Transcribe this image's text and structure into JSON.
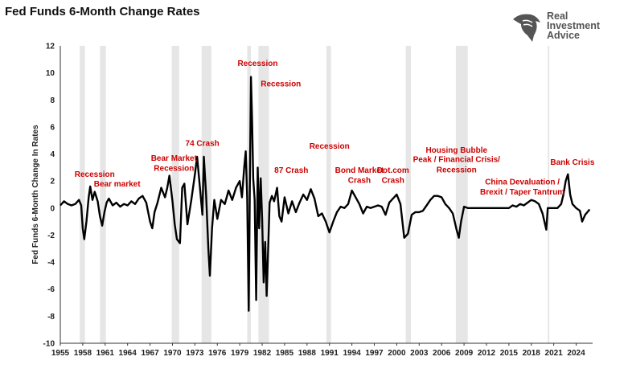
{
  "header": {
    "title": "Fed Funds 6-Month Change Rates"
  },
  "logo": {
    "name": "real-investment-advice-logo",
    "lines": [
      "Real",
      "Investment",
      "Advice"
    ],
    "color": "#555555"
  },
  "chart_data": {
    "type": "line",
    "title": "Fed Funds 6-Month Change Rates",
    "xlabel": "",
    "ylabel": "Fed Funds 6-Month Change In Rates",
    "xlim": [
      1955,
      2026.2
    ],
    "ylim": [
      -10,
      12
    ],
    "grid": false,
    "line_color": "#000000",
    "shade_color": "#e6e6e6",
    "x_ticks": [
      1955,
      1958,
      1961,
      1964,
      1967,
      1970,
      1973,
      1976,
      1979,
      1982,
      1985,
      1988,
      1991,
      1994,
      1997,
      2000,
      2003,
      2006,
      2009,
      2012,
      2015,
      2018,
      2021,
      2024
    ],
    "y_ticks": [
      -10,
      -8,
      -6,
      -4,
      -2,
      0,
      2,
      4,
      6,
      8,
      10,
      12
    ],
    "recession_bands": [
      [
        1957.6,
        1958.3
      ],
      [
        1960.3,
        1961.1
      ],
      [
        1969.9,
        1970.9
      ],
      [
        1973.9,
        1975.2
      ],
      [
        1980.0,
        1980.5
      ],
      [
        1981.5,
        1982.9
      ],
      [
        1990.6,
        1991.2
      ],
      [
        2001.2,
        2001.9
      ],
      [
        2007.9,
        2009.5
      ],
      [
        2020.2,
        2020.4
      ]
    ],
    "series": [
      {
        "x": [
          1955,
          1955.5,
          1956,
          1956.5,
          1957,
          1957.5,
          1957.8,
          1958.0,
          1958.2,
          1958.5,
          1958.8,
          1959,
          1959.3,
          1959.6,
          1960,
          1960.3,
          1960.6,
          1960.9,
          1961.2,
          1961.5,
          1962,
          1962.5,
          1963,
          1963.5,
          1964,
          1964.5,
          1965,
          1965.5,
          1966,
          1966.5,
          1967,
          1967.3,
          1967.6,
          1968,
          1968.5,
          1969,
          1969.3,
          1969.6,
          1970,
          1970.3,
          1970.6,
          1971,
          1971.3,
          1971.6,
          1972,
          1972.5,
          1973,
          1973.3,
          1973.6,
          1974,
          1974.2,
          1974.5,
          1974.8,
          1975,
          1975.3,
          1975.6,
          1976,
          1976.5,
          1977,
          1977.5,
          1978,
          1978.5,
          1979,
          1979.3,
          1979.6,
          1979.8,
          1980,
          1980.2,
          1980.35,
          1980.5,
          1980.65,
          1980.8,
          1981,
          1981.2,
          1981.4,
          1981.6,
          1981.8,
          1982,
          1982.2,
          1982.4,
          1982.6,
          1982.8,
          1983,
          1983.3,
          1983.6,
          1984,
          1984.3,
          1984.6,
          1985,
          1985.5,
          1986,
          1986.5,
          1987,
          1987.5,
          1988,
          1988.5,
          1989,
          1989.5,
          1990,
          1990.5,
          1991,
          1991.5,
          1992,
          1992.5,
          1993,
          1993.5,
          1994,
          1994.5,
          1995,
          1995.5,
          1996,
          1996.5,
          1997,
          1997.5,
          1998,
          1998.5,
          1999,
          1999.5,
          2000,
          2000.5,
          2001,
          2001.5,
          2002,
          2002.5,
          2003,
          2003.5,
          2004,
          2004.5,
          2005,
          2005.5,
          2006,
          2006.5,
          2007,
          2007.5,
          2008,
          2008.3,
          2008.6,
          2009,
          2009.5,
          2010,
          2011,
          2012,
          2013,
          2014,
          2015,
          2015.5,
          2016,
          2016.5,
          2017,
          2017.5,
          2018,
          2018.5,
          2019,
          2019.5,
          2020,
          2020.2,
          2020.5,
          2021,
          2021.5,
          2022,
          2022.3,
          2022.6,
          2022.9,
          2023.2,
          2023.5,
          2024,
          2024.5,
          2024.8,
          2025.2,
          2025.5,
          2025.8
        ],
        "values": [
          0.2,
          0.5,
          0.3,
          0.2,
          0.3,
          0.6,
          0.2,
          -1.5,
          -2.3,
          -1.0,
          0.8,
          1.6,
          0.6,
          1.2,
          0.5,
          -0.6,
          -1.3,
          -0.3,
          0.4,
          0.7,
          0.2,
          0.4,
          0.1,
          0.3,
          0.2,
          0.5,
          0.3,
          0.7,
          0.9,
          0.4,
          -1.0,
          -1.5,
          -0.3,
          0.4,
          1.5,
          0.8,
          1.5,
          2.4,
          0.5,
          -1.2,
          -2.3,
          -2.6,
          1.5,
          1.8,
          -1.2,
          0.5,
          2.5,
          3.8,
          2.0,
          -0.5,
          3.8,
          1.0,
          -3.0,
          -5.0,
          -1.5,
          0.6,
          -0.8,
          0.6,
          0.3,
          1.3,
          0.6,
          1.5,
          2.0,
          0.8,
          3.0,
          4.2,
          0.8,
          -7.6,
          1.5,
          9.7,
          6.5,
          2.2,
          0.6,
          -6.8,
          3.0,
          -1.5,
          2.2,
          -0.8,
          -5.5,
          -2.5,
          -6.5,
          -3.0,
          0.4,
          0.9,
          0.5,
          1.5,
          -0.6,
          -1.0,
          0.8,
          -0.4,
          0.5,
          -0.3,
          0.4,
          1.0,
          0.6,
          1.4,
          0.7,
          -0.6,
          -0.4,
          -1.0,
          -1.8,
          -1.0,
          -0.3,
          0.1,
          0.0,
          0.3,
          1.3,
          0.8,
          0.3,
          -0.4,
          0.1,
          0.0,
          0.1,
          0.2,
          0.1,
          -0.5,
          0.4,
          0.7,
          1.0,
          0.3,
          -2.2,
          -1.9,
          -0.5,
          -0.3,
          -0.3,
          -0.2,
          0.2,
          0.6,
          0.9,
          0.9,
          0.8,
          0.3,
          0.0,
          -0.4,
          -1.6,
          -2.2,
          -1.0,
          0.1,
          0.0,
          0.0,
          0.0,
          0.0,
          0.0,
          0.0,
          0.0,
          0.2,
          0.1,
          0.3,
          0.2,
          0.4,
          0.6,
          0.5,
          0.3,
          -0.4,
          -1.6,
          0.0,
          0.0,
          0.0,
          0.0,
          0.3,
          1.0,
          2.0,
          2.5,
          1.0,
          0.3,
          0.0,
          -0.2,
          -1.0,
          -0.5,
          -0.3,
          -0.1
        ]
      }
    ],
    "annotations": [
      {
        "text": "Recession",
        "x": 1959.6,
        "y": 2.3
      },
      {
        "text": "Bear market",
        "x": 1962.6,
        "y": 1.6
      },
      {
        "text": "Bear Market",
        "x": 1970.2,
        "y": 3.5
      },
      {
        "text": "Recession",
        "x": 1970.2,
        "y": 2.75
      },
      {
        "text": "74 Crash",
        "x": 1974.0,
        "y": 4.6
      },
      {
        "text": "Recession",
        "x": 1981.4,
        "y": 10.5
      },
      {
        "text": "Recession",
        "x": 1984.5,
        "y": 9.0
      },
      {
        "text": "87 Crash",
        "x": 1985.9,
        "y": 2.6
      },
      {
        "text": "Recession",
        "x": 1991.0,
        "y": 4.4
      },
      {
        "text": "Bond Market",
        "x": 1995.0,
        "y": 2.6
      },
      {
        "text": "Crash",
        "x": 1995.0,
        "y": 1.85
      },
      {
        "text": "Dot.com",
        "x": 1999.5,
        "y": 2.6
      },
      {
        "text": "Crash",
        "x": 1999.5,
        "y": 1.85
      },
      {
        "text": "Housing Bubble",
        "x": 2008.0,
        "y": 4.1
      },
      {
        "text": "Peak / Financial Crisis/",
        "x": 2008.0,
        "y": 3.4
      },
      {
        "text": "Recession",
        "x": 2008.0,
        "y": 2.65
      },
      {
        "text": "China Devaluation /",
        "x": 2016.8,
        "y": 1.75
      },
      {
        "text": "Brexit / Taper Tantrum",
        "x": 2016.8,
        "y": 1.0
      },
      {
        "text": "Bank Crisis",
        "x": 2023.5,
        "y": 3.2
      }
    ]
  }
}
